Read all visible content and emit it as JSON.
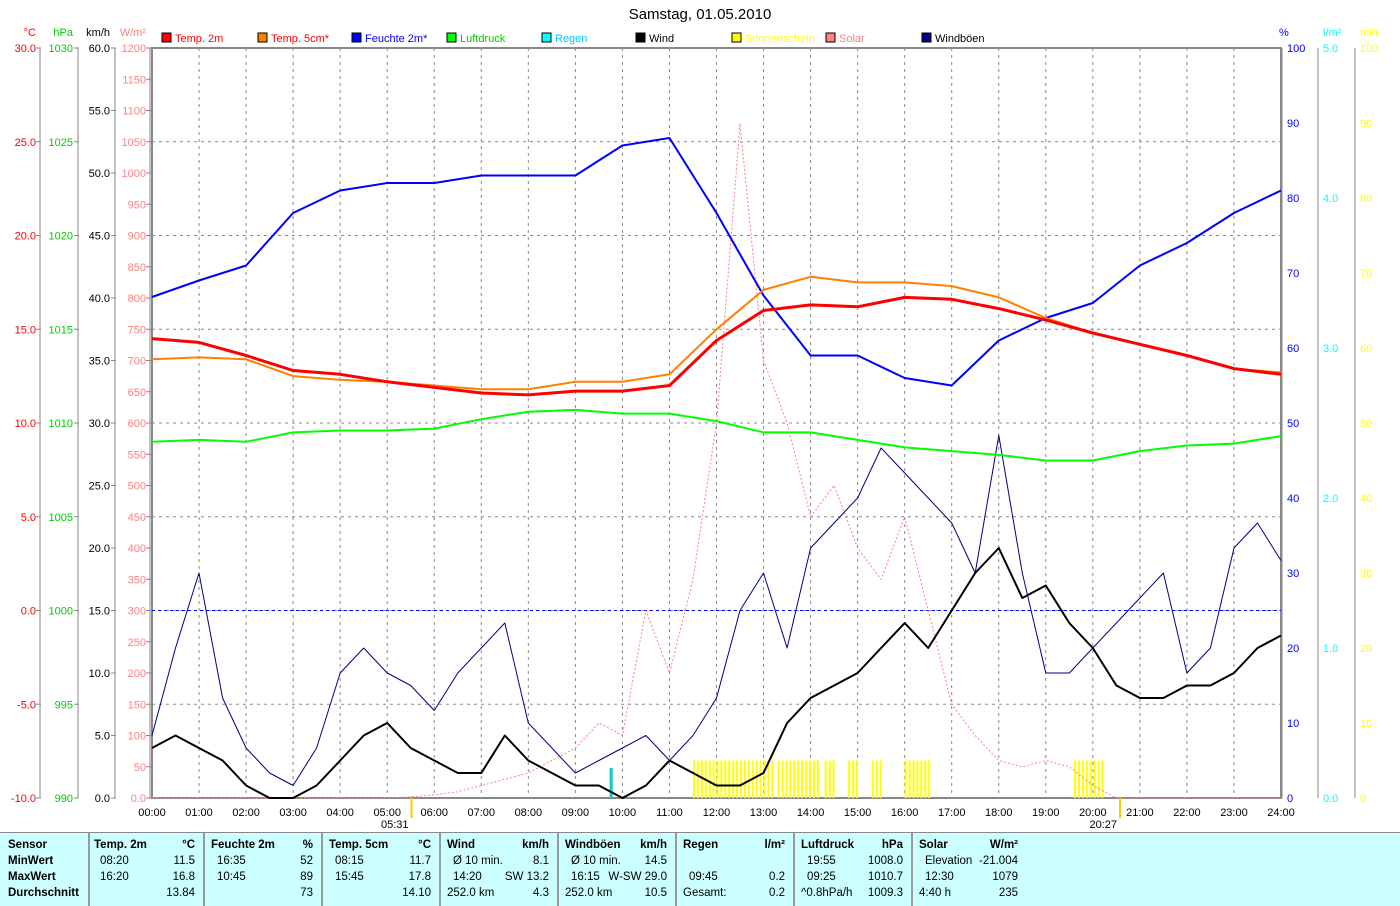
{
  "chart_data": {
    "type": "line",
    "title": "Samstag, 01.05.2010",
    "x_unit": "hours",
    "x_ticks": [
      "00:00",
      "01:00",
      "02:00",
      "03:00",
      "04:00",
      "05:00",
      "06:00",
      "07:00",
      "08:00",
      "09:00",
      "10:00",
      "11:00",
      "12:00",
      "13:00",
      "14:00",
      "15:00",
      "16:00",
      "17:00",
      "18:00",
      "19:00",
      "20:00",
      "21:00",
      "22:00",
      "23:00",
      "24:00"
    ],
    "axes": {
      "temp": {
        "unit": "°C",
        "range": [
          -10,
          30
        ],
        "ticks": [
          "30.0",
          "25.0",
          "20.0",
          "15.0",
          "10.0",
          "5.0",
          "0.0",
          "-5.0",
          "-10.0"
        ],
        "color": "#ff0000"
      },
      "pressure": {
        "unit": "hPa",
        "range": [
          990,
          1030
        ],
        "ticks": [
          "1030",
          "1025",
          "1020",
          "1015",
          "1010",
          "1005",
          "1000",
          "995",
          "990"
        ],
        "color": "#00cc00"
      },
      "wind": {
        "unit": "km/h",
        "range": [
          0,
          60
        ],
        "ticks": [
          "60.0",
          "55.0",
          "50.0",
          "45.0",
          "40.0",
          "35.0",
          "30.0",
          "25.0",
          "20.0",
          "15.0",
          "10.0",
          "5.0",
          "0.0"
        ],
        "color": "#000000"
      },
      "solar": {
        "unit": "W/m²",
        "range": [
          0,
          1200
        ],
        "ticks": [
          "1200",
          "1150",
          "1100",
          "1050",
          "1000",
          "950",
          "900",
          "850",
          "800",
          "750",
          "700",
          "650",
          "600",
          "550",
          "500",
          "450",
          "400",
          "350",
          "300",
          "250",
          "200",
          "150",
          "100",
          "50",
          "0.0"
        ],
        "color": "#ff8080"
      },
      "humidity": {
        "unit": "%",
        "range": [
          0,
          100
        ],
        "ticks": [
          "100",
          "90",
          "80",
          "70",
          "60",
          "50",
          "40",
          "30",
          "20",
          "10",
          "0"
        ],
        "color": "#0000ff"
      },
      "rain": {
        "unit": "l/m²",
        "range": [
          0,
          5
        ],
        "ticks": [
          "5.0",
          "4.0",
          "3.0",
          "2.0",
          "1.0",
          "0.0"
        ],
        "color": "#00ffff"
      },
      "sunshine": {
        "unit": "min",
        "range": [
          0,
          100
        ],
        "ticks": [
          "100",
          "90",
          "80",
          "70",
          "60",
          "50",
          "40",
          "30",
          "20",
          "10",
          "0"
        ],
        "color": "#ffff00"
      }
    },
    "legend": [
      {
        "label": "Temp. 2m",
        "color": "#ff0000",
        "text_color": "#ff0000"
      },
      {
        "label": "Temp. 5cm*",
        "color": "#ff8000",
        "text_color": "#ff0000"
      },
      {
        "label": "Feuchte 2m*",
        "color": "#0000ff",
        "text_color": "#0000ff"
      },
      {
        "label": "Luftdruck",
        "color": "#00ff00",
        "text_color": "#00cc00"
      },
      {
        "label": "Regen",
        "color": "#00ffff",
        "text_color": "#00ccff"
      },
      {
        "label": "Wind",
        "color": "#000000",
        "text_color": "#000000"
      },
      {
        "label": "Sonnenschein",
        "color": "#ffff00",
        "text_color": "#ffff00"
      },
      {
        "label": "Solar",
        "color": "#ff8080",
        "text_color": "#ff8080"
      },
      {
        "label": "Windböen",
        "color": "#000080",
        "text_color": "#000000"
      }
    ],
    "hourly_x": [
      0,
      1,
      2,
      3,
      4,
      5,
      6,
      7,
      8,
      9,
      10,
      11,
      12,
      13,
      14,
      15,
      16,
      17,
      18,
      19,
      20,
      21,
      22,
      23,
      24
    ],
    "series": [
      {
        "name": "Temp. 2m",
        "axis": "temp",
        "color": "#ff0000",
        "width": 3,
        "values": [
          14.5,
          14.3,
          13.6,
          12.8,
          12.6,
          12.2,
          11.9,
          11.6,
          11.5,
          11.7,
          11.7,
          12.0,
          14.4,
          16.0,
          16.3,
          16.2,
          16.7,
          16.6,
          16.1,
          15.5,
          14.8,
          14.2,
          13.6,
          12.9,
          12.6
        ]
      },
      {
        "name": "Temp. 5cm*",
        "axis": "temp",
        "color": "#ff8000",
        "width": 2,
        "values": [
          13.4,
          13.5,
          13.4,
          12.5,
          12.3,
          12.2,
          12.0,
          11.8,
          11.8,
          12.2,
          12.2,
          12.6,
          15.0,
          17.1,
          17.8,
          17.5,
          17.5,
          17.3,
          16.7,
          15.6,
          14.8,
          14.2,
          13.6,
          12.9,
          12.7
        ]
      },
      {
        "name": "Feuchte 2m*",
        "axis": "humidity",
        "color": "#0000ff",
        "width": 2,
        "values": [
          66.8,
          69,
          71,
          78,
          81,
          82,
          82,
          83,
          83,
          83,
          87,
          88,
          78,
          67,
          59,
          59,
          56,
          55,
          61,
          64,
          66,
          71,
          74,
          78,
          81
        ]
      },
      {
        "name": "Luftdruck",
        "axis": "pressure",
        "color": "#00ff00",
        "width": 2,
        "values": [
          1009.0,
          1009.1,
          1009.0,
          1009.5,
          1009.6,
          1009.6,
          1009.7,
          1010.2,
          1010.6,
          1010.7,
          1010.5,
          1010.5,
          1010.1,
          1009.5,
          1009.5,
          1009.1,
          1008.7,
          1008.5,
          1008.3,
          1008.0,
          1008.0,
          1008.5,
          1008.8,
          1008.9,
          1009.3
        ]
      }
    ],
    "half_hourly_x_step": 0.5,
    "wind": {
      "name": "Wind",
      "axis": "wind",
      "color": "#000000",
      "values": [
        4,
        5,
        4,
        3,
        1,
        0,
        0,
        1,
        3,
        5,
        6,
        4,
        3,
        2,
        2,
        5,
        3,
        2,
        1,
        1,
        0,
        1,
        3,
        2,
        1,
        1,
        2,
        6,
        8,
        9,
        10,
        12,
        14,
        12,
        15,
        18,
        20,
        16,
        17,
        14,
        12,
        9,
        8,
        8,
        9,
        9,
        10,
        12,
        13
      ]
    },
    "gusts": {
      "name": "Windböen",
      "axis": "wind",
      "color": "#000080",
      "values": [
        5,
        12,
        18,
        8,
        4,
        2,
        1,
        4,
        10,
        12,
        10,
        9,
        7,
        10,
        12,
        14,
        6,
        4,
        2,
        3,
        4,
        5,
        3,
        5,
        8,
        15,
        18,
        12,
        20,
        22,
        24,
        28,
        26,
        24,
        22,
        18,
        29,
        18,
        10,
        10,
        12,
        14,
        16,
        18,
        10,
        12,
        20,
        22,
        19
      ]
    },
    "solar": {
      "name": "Solar",
      "axis": "solar",
      "color": "#ff8080",
      "values": [
        0,
        0,
        0,
        0,
        0,
        0,
        0,
        0,
        0,
        0,
        0,
        2,
        5,
        10,
        20,
        30,
        40,
        60,
        80,
        120,
        100,
        300,
        200,
        350,
        600,
        1079,
        700,
        600,
        450,
        500,
        400,
        350,
        450,
        300,
        150,
        100,
        60,
        50,
        60,
        50,
        20,
        0,
        0,
        0,
        0,
        0,
        0,
        0,
        0
      ]
    },
    "sunshine_intervals": [
      [
        11.5,
        13.2
      ],
      [
        13.3,
        14.2
      ],
      [
        14.3,
        14.5
      ],
      [
        14.8,
        15.0
      ],
      [
        15.3,
        15.5
      ],
      [
        16.0,
        16.5
      ],
      [
        19.6,
        20.2
      ]
    ],
    "sunshine_min_per_interval": 5,
    "rain": [
      {
        "time": 9.75,
        "value": 0.2
      }
    ],
    "reference_line": {
      "axis": "temp",
      "value": 0.0,
      "color": "#0000ff"
    },
    "sunrise": "05:31",
    "sunset": "20:27",
    "sunrise_h": 5.517,
    "sunset_h": 20.45
  },
  "table": {
    "rows": [
      "Sensor",
      "MinWert",
      "MaxWert",
      "Durchschnitt"
    ],
    "cols": [
      {
        "h": "Temp. 2m",
        "u": "°C",
        "a": [
          "08:20",
          "16:20",
          ""
        ],
        "b": [
          "11.5",
          "16.8",
          "13.84"
        ]
      },
      {
        "h": "Feuchte 2m",
        "u": "%",
        "a": [
          "16:35",
          "10:45",
          ""
        ],
        "b": [
          "52",
          "89",
          "73"
        ]
      },
      {
        "h": "Temp. 5cm",
        "u": "°C",
        "a": [
          "08:15",
          "15:45",
          ""
        ],
        "b": [
          "11.7",
          "17.8",
          "14.10"
        ]
      },
      {
        "h": "Wind",
        "u": "km/h",
        "a": [
          "Ø 10 min.",
          "14:20",
          "252.0 km"
        ],
        "b": [
          "8.1",
          "SW 13.2",
          "4.3"
        ]
      },
      {
        "h": "Windböen",
        "u": "km/h",
        "a": [
          "Ø 10 min.",
          "16:15",
          "252.0 km"
        ],
        "b": [
          "14.5",
          "W-SW 29.0",
          "10.5"
        ]
      },
      {
        "h": "Regen",
        "u": "l/m²",
        "a": [
          "",
          "09:45",
          "Gesamt:"
        ],
        "b": [
          "",
          "0.2",
          "0.2"
        ]
      },
      {
        "h": "Luftdruck",
        "u": "hPa",
        "a": [
          "19:55",
          "09:25",
          "^0.8hPa/h"
        ],
        "b": [
          "1008.0",
          "1010.7",
          "1009.3"
        ]
      },
      {
        "h": "Solar",
        "u": "W/m²",
        "a": [
          "Elevation",
          "12:30",
          "4:40 h"
        ],
        "b": [
          "-21.004",
          "1079",
          "235"
        ]
      }
    ]
  }
}
